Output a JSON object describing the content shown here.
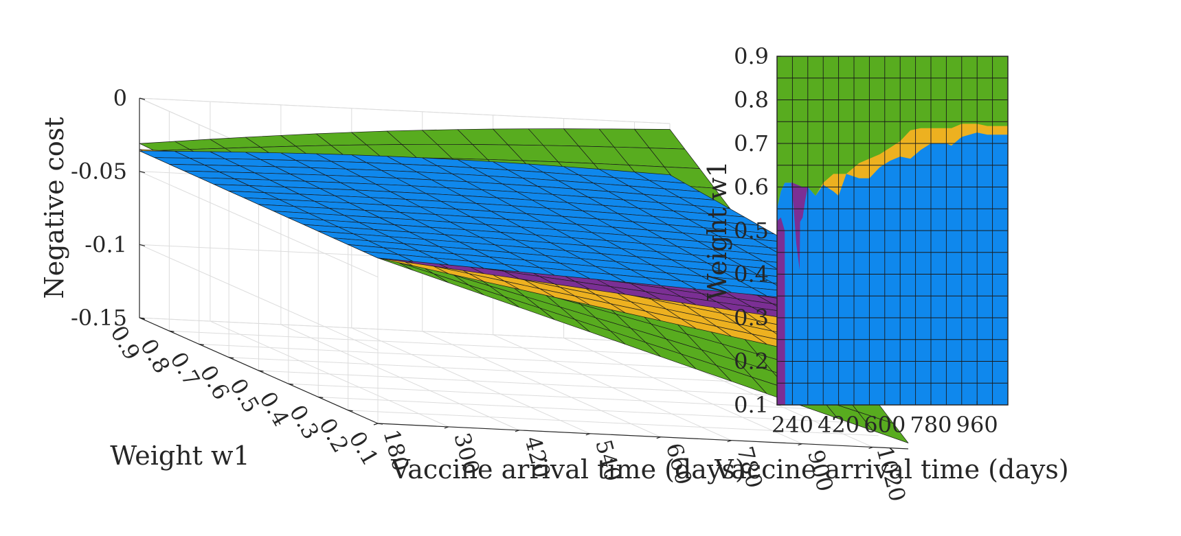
{
  "colors": {
    "green": "#58AC1F",
    "blue": "#0F88ED",
    "purple": "#7B2F94",
    "yellow": "#EDB120",
    "mesh": "#1a1a1a",
    "grid": "#dcdcdc",
    "text": "#262626"
  },
  "chart_data": [
    {
      "type": "surface",
      "xlabel": "Vaccine arrival time (days)",
      "ylabel": "Weight w1",
      "zlabel": "Negative cost",
      "xlim": [
        180,
        1080
      ],
      "ylim": [
        0.1,
        0.9
      ],
      "zlim": [
        -0.15,
        0
      ],
      "x_tick_labels": [
        "180",
        "300",
        "420",
        "540",
        "660",
        "780",
        "900",
        "1020"
      ],
      "y_tick_labels": [
        "0.9",
        "0.8",
        "0.7",
        "0.6",
        "0.5",
        "0.4",
        "0.3",
        "0.2",
        "0.1"
      ],
      "z_tick_labels": [
        "0",
        "-0.05",
        "-0.1",
        "-0.15"
      ],
      "grid": true,
      "series": [
        {
          "color": "green",
          "corner_values": {
            "x180_w0.9": -0.031,
            "x1080_w0.9": -0.004,
            "x180_w0.1": -0.037,
            "x1080_w0.1": -0.146
          }
        },
        {
          "color": "yellow",
          "corner_values": {
            "x180_w0.9": -0.035,
            "x1080_w0.9": -0.05,
            "x180_w0.1": -0.037,
            "x1080_w0.1": -0.1
          }
        },
        {
          "color": "purple",
          "corner_values": {
            "x180_w0.9": -0.036,
            "x1080_w0.9": -0.052,
            "x180_w0.1": -0.037,
            "x1080_w0.1": -0.073
          }
        },
        {
          "color": "blue",
          "corner_values": {
            "x180_w0.9": -0.036,
            "x1080_w0.9": -0.035,
            "x180_w0.1": -0.037,
            "x1080_w0.1": -0.055
          }
        }
      ]
    },
    {
      "type": "heatmap",
      "xlabel": "Vaccine arrival time (days)",
      "ylabel": "Weight w1",
      "xlim": [
        180,
        1080
      ],
      "ylim": [
        0.1,
        0.9
      ],
      "x_tick_labels": [
        "240",
        "420",
        "600",
        "780",
        "960"
      ],
      "y_tick_labels": [
        "0.1",
        "0.2",
        "0.3",
        "0.4",
        "0.5",
        "0.6",
        "0.7",
        "0.8",
        "0.9"
      ],
      "regions": [
        {
          "color": "green",
          "description_key": "upper"
        },
        {
          "color": "yellow",
          "description_key": "band"
        },
        {
          "color": "blue",
          "description_key": "lower"
        },
        {
          "color": "purple",
          "description_key": "left"
        }
      ],
      "boundaries": {
        "green_lower": [
          [
            180,
            0.55
          ],
          [
            195,
            0.59
          ],
          [
            210,
            0.61
          ],
          [
            240,
            0.61
          ],
          [
            280,
            0.6
          ],
          [
            300,
            0.6
          ],
          [
            330,
            0.58
          ],
          [
            360,
            0.61
          ],
          [
            400,
            0.63
          ],
          [
            450,
            0.63
          ],
          [
            500,
            0.655
          ],
          [
            540,
            0.665
          ],
          [
            580,
            0.675
          ],
          [
            620,
            0.69
          ],
          [
            660,
            0.705
          ],
          [
            700,
            0.73
          ],
          [
            740,
            0.735
          ],
          [
            800,
            0.735
          ],
          [
            860,
            0.735
          ],
          [
            900,
            0.745
          ],
          [
            960,
            0.745
          ],
          [
            1000,
            0.74
          ],
          [
            1080,
            0.74
          ]
        ],
        "yellow_lower": [
          [
            180,
            0.55
          ],
          [
            195,
            0.59
          ],
          [
            210,
            0.61
          ],
          [
            240,
            0.61
          ],
          [
            280,
            0.6
          ],
          [
            300,
            0.6
          ],
          [
            330,
            0.58
          ],
          [
            360,
            0.605
          ],
          [
            400,
            0.59
          ],
          [
            420,
            0.58
          ],
          [
            450,
            0.63
          ],
          [
            500,
            0.62
          ],
          [
            540,
            0.62
          ],
          [
            580,
            0.645
          ],
          [
            620,
            0.66
          ],
          [
            660,
            0.67
          ],
          [
            700,
            0.665
          ],
          [
            740,
            0.685
          ],
          [
            780,
            0.7
          ],
          [
            840,
            0.7
          ],
          [
            860,
            0.695
          ],
          [
            900,
            0.715
          ],
          [
            960,
            0.725
          ],
          [
            1000,
            0.72
          ],
          [
            1080,
            0.72
          ]
        ],
        "purple_left": [
          [
            180,
            0.1
          ],
          [
            212,
            0.1
          ],
          [
            210,
            0.5
          ],
          [
            195,
            0.53
          ],
          [
            185,
            0.525
          ],
          [
            180,
            0.52
          ]
        ],
        "purple_notch": [
          [
            240,
            0.61
          ],
          [
            280,
            0.6
          ],
          [
            300,
            0.6
          ],
          [
            290,
            0.57
          ],
          [
            280,
            0.53
          ],
          [
            270,
            0.52
          ],
          [
            268,
            0.41
          ],
          [
            255,
            0.47
          ],
          [
            245,
            0.55
          ],
          [
            235,
            0.61
          ]
        ]
      }
    }
  ]
}
